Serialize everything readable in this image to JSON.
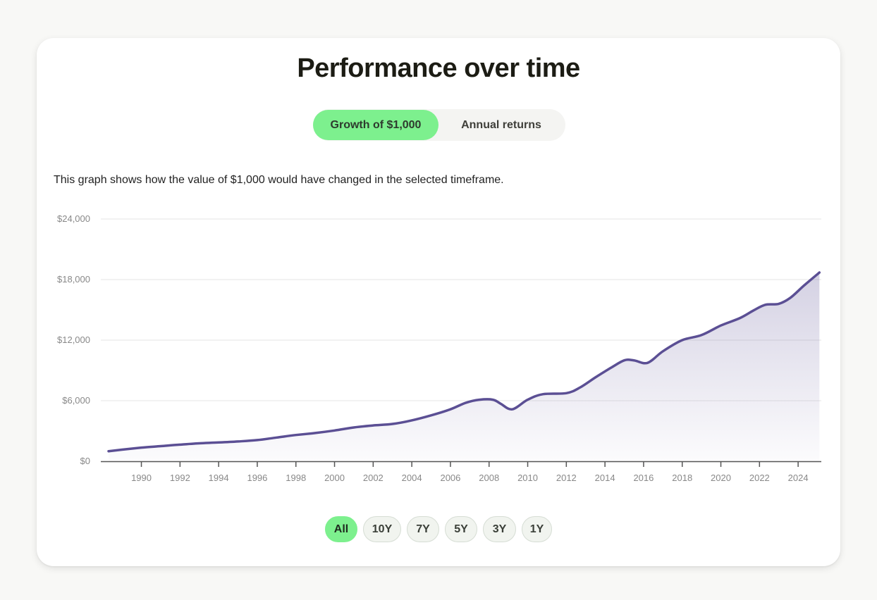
{
  "header": {
    "title": "Performance over time"
  },
  "toggle": {
    "options": [
      "Growth of $1,000",
      "Annual returns"
    ],
    "active": "Growth of $1,000"
  },
  "description": "This graph shows how the value of $1,000 would have changed in the selected timeframe.",
  "ranges": {
    "options": [
      "All",
      "10Y",
      "7Y",
      "5Y",
      "3Y",
      "1Y"
    ],
    "active": "All"
  },
  "colors": {
    "line": "#5b4f94",
    "accent": "#7df08e",
    "grid": "#e6e6e6",
    "axis": "#555555",
    "tick_label": "#888888"
  },
  "chart_data": {
    "type": "area",
    "title": "",
    "xlabel": "",
    "ylabel": "",
    "ylim": [
      0,
      24000
    ],
    "yticks": [
      0,
      6000,
      12000,
      18000,
      24000
    ],
    "ytick_labels": [
      "$0",
      "$6,000",
      "$12,000",
      "$18,000",
      "$24,000"
    ],
    "xlim": [
      1987.9,
      2025.2
    ],
    "xticks": [
      1990,
      1992,
      1994,
      1996,
      1998,
      2000,
      2002,
      2004,
      2006,
      2008,
      2010,
      2012,
      2014,
      2016,
      2018,
      2020,
      2022,
      2024
    ],
    "grid": true,
    "series": [
      {
        "x": [
          1988.3,
          1989,
          1990,
          1991,
          1992,
          1993,
          1994,
          1995,
          1996,
          1997,
          1998,
          1999,
          2000,
          2001,
          2002,
          2003,
          2004,
          2005,
          2006,
          2006.8,
          2007.5,
          2008.2,
          2008.6,
          2009.2,
          2010,
          2010.8,
          2012,
          2012.7,
          2013.5,
          2014.3,
          2015,
          2015.5,
          2016.2,
          2017,
          2018,
          2019,
          2020,
          2021,
          2021.7,
          2022.3,
          2023,
          2023.6,
          2024.3,
          2025.1
        ],
        "y": [
          1000,
          1150,
          1350,
          1500,
          1650,
          1780,
          1860,
          1960,
          2100,
          2350,
          2600,
          2800,
          3050,
          3350,
          3550,
          3700,
          4050,
          4550,
          5150,
          5800,
          6100,
          6100,
          5700,
          5150,
          6100,
          6650,
          6750,
          7300,
          8300,
          9250,
          10000,
          10000,
          9750,
          10900,
          12000,
          12500,
          13450,
          14200,
          14950,
          15500,
          15600,
          16200,
          17400,
          18700
        ]
      }
    ]
  }
}
